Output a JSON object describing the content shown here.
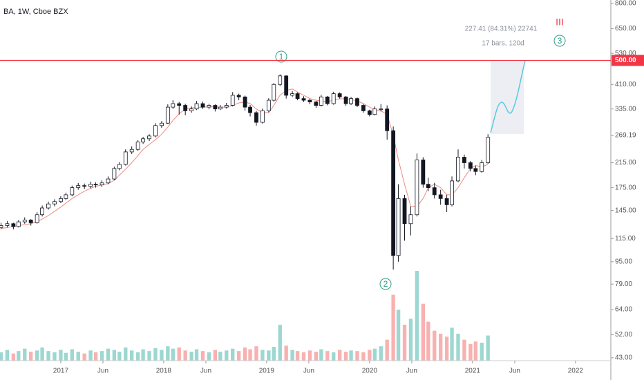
{
  "chart_data": {
    "type": "candlestick",
    "title": "BA, 1W, Cboe BZX",
    "x": [
      2016.42,
      2016.48,
      2016.54,
      2016.59,
      2016.65,
      2016.71,
      2016.77,
      2016.82,
      2016.88,
      2016.94,
      2017.0,
      2017.05,
      2017.11,
      2017.17,
      2017.23,
      2017.29,
      2017.34,
      2017.4,
      2017.46,
      2017.52,
      2017.57,
      2017.63,
      2017.69,
      2017.75,
      2017.8,
      2017.86,
      2017.92,
      2017.98,
      2018.04,
      2018.09,
      2018.15,
      2018.21,
      2018.27,
      2018.32,
      2018.38,
      2018.44,
      2018.5,
      2018.55,
      2018.61,
      2018.67,
      2018.73,
      2018.79,
      2018.84,
      2018.9,
      2018.96,
      2019.02,
      2019.07,
      2019.13,
      2019.19,
      2019.25,
      2019.3,
      2019.36,
      2019.42,
      2019.48,
      2019.53,
      2019.59,
      2019.65,
      2019.71,
      2019.77,
      2019.82,
      2019.88,
      2019.94,
      2020.0,
      2020.05,
      2020.11,
      2020.17,
      2020.23,
      2020.28,
      2020.34,
      2020.4,
      2020.46,
      2020.52,
      2020.57,
      2020.63,
      2020.69,
      2020.75,
      2020.8,
      2020.86,
      2020.92,
      2020.98,
      2021.03,
      2021.09,
      2021.15
    ],
    "ohlc": [
      [
        126,
        131,
        124,
        128
      ],
      [
        128,
        133,
        126,
        130
      ],
      [
        130,
        131,
        124,
        127
      ],
      [
        127,
        134,
        126,
        132
      ],
      [
        132,
        137,
        130,
        134
      ],
      [
        134,
        135,
        128,
        131
      ],
      [
        131,
        143,
        130,
        140
      ],
      [
        140,
        151,
        138,
        148
      ],
      [
        148,
        156,
        146,
        153
      ],
      [
        153,
        159,
        150,
        156
      ],
      [
        156,
        163,
        154,
        160
      ],
      [
        160,
        168,
        158,
        165
      ],
      [
        165,
        178,
        163,
        175
      ],
      [
        175,
        182,
        172,
        178
      ],
      [
        178,
        181,
        173,
        177
      ],
      [
        177,
        184,
        174,
        180
      ],
      [
        180,
        183,
        175,
        179
      ],
      [
        179,
        186,
        176,
        182
      ],
      [
        182,
        192,
        180,
        188
      ],
      [
        188,
        208,
        186,
        205
      ],
      [
        205,
        216,
        202,
        212
      ],
      [
        212,
        240,
        210,
        235
      ],
      [
        235,
        246,
        231,
        240
      ],
      [
        240,
        259,
        237,
        255
      ],
      [
        255,
        266,
        251,
        262
      ],
      [
        262,
        272,
        257,
        268
      ],
      [
        268,
        298,
        265,
        292
      ],
      [
        292,
        303,
        287,
        298
      ],
      [
        298,
        348,
        296,
        340
      ],
      [
        340,
        360,
        335,
        350
      ],
      [
        350,
        355,
        320,
        345
      ],
      [
        345,
        350,
        318,
        330
      ],
      [
        330,
        342,
        325,
        335
      ],
      [
        335,
        358,
        332,
        350
      ],
      [
        350,
        356,
        335,
        340
      ],
      [
        340,
        350,
        334,
        345
      ],
      [
        345,
        348,
        328,
        335
      ],
      [
        335,
        346,
        332,
        340
      ],
      [
        340,
        352,
        336,
        345
      ],
      [
        345,
        385,
        342,
        375
      ],
      [
        375,
        380,
        360,
        370
      ],
      [
        370,
        374,
        330,
        340
      ],
      [
        340,
        346,
        315,
        325
      ],
      [
        325,
        330,
        292,
        300
      ],
      [
        300,
        336,
        297,
        330
      ],
      [
        330,
        366,
        326,
        360
      ],
      [
        360,
        415,
        356,
        410
      ],
      [
        410,
        446,
        405,
        440
      ],
      [
        440,
        442,
        365,
        375
      ],
      [
        375,
        388,
        370,
        380
      ],
      [
        380,
        384,
        360,
        365
      ],
      [
        365,
        372,
        355,
        360
      ],
      [
        360,
        364,
        348,
        355
      ],
      [
        355,
        358,
        338,
        345
      ],
      [
        345,
        376,
        342,
        370
      ],
      [
        370,
        373,
        345,
        350
      ],
      [
        350,
        386,
        347,
        380
      ],
      [
        380,
        384,
        365,
        370
      ],
      [
        370,
        373,
        344,
        350
      ],
      [
        350,
        370,
        346,
        365
      ],
      [
        365,
        368,
        340,
        345
      ],
      [
        345,
        349,
        325,
        330
      ],
      [
        330,
        333,
        315,
        320
      ],
      [
        320,
        342,
        318,
        335
      ],
      [
        335,
        349,
        328,
        335
      ],
      [
        335,
        345,
        260,
        280
      ],
      [
        280,
        290,
        89,
        100
      ],
      [
        100,
        180,
        95,
        160
      ],
      [
        160,
        165,
        113,
        130
      ],
      [
        130,
        150,
        118,
        140
      ],
      [
        140,
        232,
        138,
        220
      ],
      [
        220,
        225,
        175,
        180
      ],
      [
        180,
        190,
        170,
        175
      ],
      [
        175,
        182,
        160,
        165
      ],
      [
        165,
        172,
        152,
        160
      ],
      [
        160,
        165,
        143,
        152
      ],
      [
        152,
        192,
        150,
        185
      ],
      [
        185,
        240,
        183,
        225
      ],
      [
        225,
        230,
        205,
        215
      ],
      [
        215,
        218,
        200,
        205
      ],
      [
        205,
        210,
        194,
        200
      ],
      [
        200,
        220,
        198,
        215
      ],
      [
        215,
        272,
        213,
        265
      ]
    ],
    "volume": [
      14,
      18,
      12,
      16,
      20,
      15,
      17,
      22,
      16,
      14,
      18,
      13,
      19,
      15,
      12,
      17,
      14,
      16,
      20,
      18,
      15,
      22,
      17,
      14,
      19,
      16,
      21,
      18,
      24,
      20,
      22,
      17,
      15,
      19,
      16,
      14,
      18,
      15,
      17,
      20,
      16,
      22,
      19,
      24,
      18,
      17,
      23,
      60,
      25,
      18,
      16,
      14,
      17,
      15,
      19,
      16,
      14,
      18,
      15,
      17,
      16,
      14,
      18,
      20,
      24,
      35,
      110,
      85,
      60,
      70,
      150,
      95,
      65,
      50,
      45,
      40,
      55,
      45,
      35,
      28,
      32,
      30,
      42
    ],
    "ma": {
      "color": "#f08a80",
      "values": [
        125,
        126,
        127,
        128,
        129,
        130,
        132,
        135,
        139,
        144,
        149,
        154,
        160,
        165,
        170,
        174,
        177,
        179,
        181,
        186,
        194,
        204,
        215,
        228,
        240,
        250,
        260,
        272,
        288,
        305,
        322,
        335,
        338,
        339,
        340,
        341,
        341,
        340,
        340,
        345,
        352,
        355,
        350,
        335,
        325,
        325,
        345,
        375,
        390,
        395,
        385,
        375,
        365,
        360,
        358,
        356,
        360,
        364,
        365,
        362,
        358,
        350,
        340,
        333,
        330,
        320,
        270,
        220,
        180,
        150,
        150,
        160,
        175,
        180,
        175,
        165,
        165,
        175,
        190,
        205,
        210,
        208,
        212
      ]
    },
    "up_color": "#26a69a",
    "down_color": "#ef5350",
    "candle_color": "#131722",
    "log_scale": true,
    "ylim": [
      42,
      823
    ],
    "yticks": [
      {
        "value": 800,
        "label": "800.00"
      },
      {
        "value": 650,
        "label": "650.00"
      },
      {
        "value": 530,
        "label": "530.00"
      },
      {
        "value": 410,
        "label": "410.00"
      },
      {
        "value": 335,
        "label": "335.00"
      },
      {
        "value": 269.19,
        "label": "269.19"
      },
      {
        "value": 215,
        "label": "215.00"
      },
      {
        "value": 175,
        "label": "175.00"
      },
      {
        "value": 145,
        "label": "145.00"
      },
      {
        "value": 115,
        "label": "115.00"
      },
      {
        "value": 95,
        "label": "95.00"
      },
      {
        "value": 79,
        "label": "79.00"
      },
      {
        "value": 64,
        "label": "64.00"
      },
      {
        "value": 52,
        "label": "52.00"
      },
      {
        "value": 43,
        "label": "43.00"
      }
    ],
    "xlim": [
      2016.41,
      2022.33
    ],
    "xticks": [
      2017,
      {
        "value": 2017.41,
        "label": "Jun"
      },
      2018,
      {
        "value": 2018.41,
        "label": "Jun"
      },
      2019,
      {
        "value": 2019.41,
        "label": "Jun"
      },
      2020,
      {
        "value": 2020.41,
        "label": "Jun"
      },
      2021,
      {
        "value": 2021.41,
        "label": "Jun"
      },
      2022
    ],
    "hline": {
      "value": 500,
      "label": "500.00",
      "color": "#f23645"
    },
    "annotations": [
      "1",
      "2",
      "3",
      "III"
    ],
    "measure": [
      "227.41 (84.31%) 22741",
      "17 bars, 120d"
    ]
  }
}
